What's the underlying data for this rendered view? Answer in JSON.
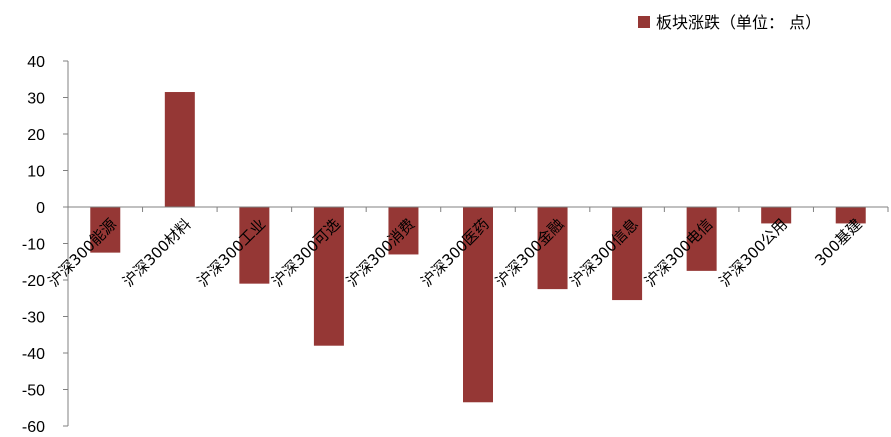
{
  "chart_data": {
    "type": "bar",
    "categories": [
      "沪深300能源",
      "沪深300材料",
      "沪深300工业",
      "沪深300可选",
      "沪深300消费",
      "沪深300医药",
      "沪深300金融",
      "沪深300信息",
      "沪深300电信",
      "沪深300公用",
      "300基建"
    ],
    "series": [
      {
        "name": "板块涨跌（单位： 点）",
        "values": [
          -12.5,
          31.5,
          -21,
          -38,
          -13,
          -53.5,
          -22.5,
          -25.5,
          -17.5,
          -4.5,
          -4.5
        ],
        "color": "#953735"
      }
    ],
    "xlabel": "",
    "ylabel": "",
    "ylim": [
      -60,
      40
    ],
    "yticks": [
      40,
      30,
      20,
      10,
      0,
      -10,
      -20,
      -30,
      -40,
      -50,
      -60
    ],
    "grid": false,
    "legend": "top-right",
    "axis_color": "#808080"
  }
}
